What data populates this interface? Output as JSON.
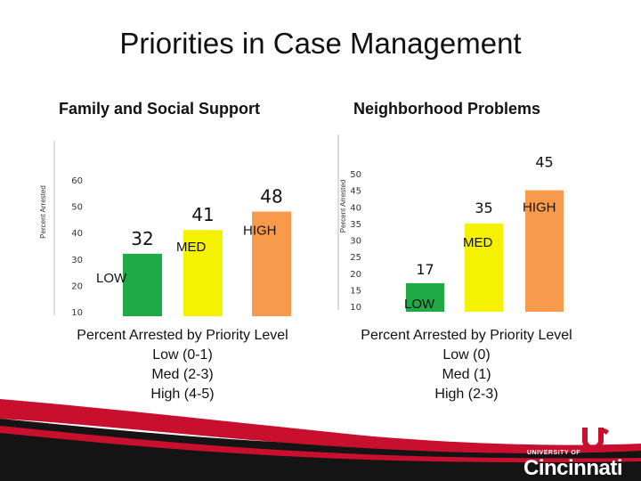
{
  "slide": {
    "title": "Priorities in Case Management",
    "logo_line1": "UNIVERSITY OF",
    "logo_line2": "Cincinnati"
  },
  "colors": {
    "low": "#20aa45",
    "med": "#f4f200",
    "high": "#f79a4b",
    "footer_red": "#c8102e",
    "footer_black": "#141414"
  },
  "chart_data": [
    {
      "type": "bar",
      "title": "Family and Social Support",
      "ylabel": "Percent Arrested",
      "categories": [
        "LOW",
        "MED",
        "HIGH"
      ],
      "values": [
        32,
        41,
        48
      ],
      "ylim": [
        10,
        60
      ],
      "yticks": [
        10,
        20,
        30,
        40,
        50,
        60
      ],
      "caption": [
        "Percent Arrested by Priority Level",
        "Low (0-1)",
        "Med (2-3)",
        "High (4-5)"
      ]
    },
    {
      "type": "bar",
      "title": "Neighborhood Problems",
      "ylabel": "Percent Arrested",
      "categories": [
        "LOW",
        "MED",
        "HIGH"
      ],
      "values": [
        17,
        35,
        45
      ],
      "ylim": [
        10,
        50
      ],
      "yticks": [
        10,
        15,
        20,
        25,
        30,
        35,
        40,
        45,
        50
      ],
      "caption": [
        "Percent Arrested by Priority Level",
        "Low (0)",
        "Med (1)",
        "High (2-3)"
      ]
    }
  ]
}
